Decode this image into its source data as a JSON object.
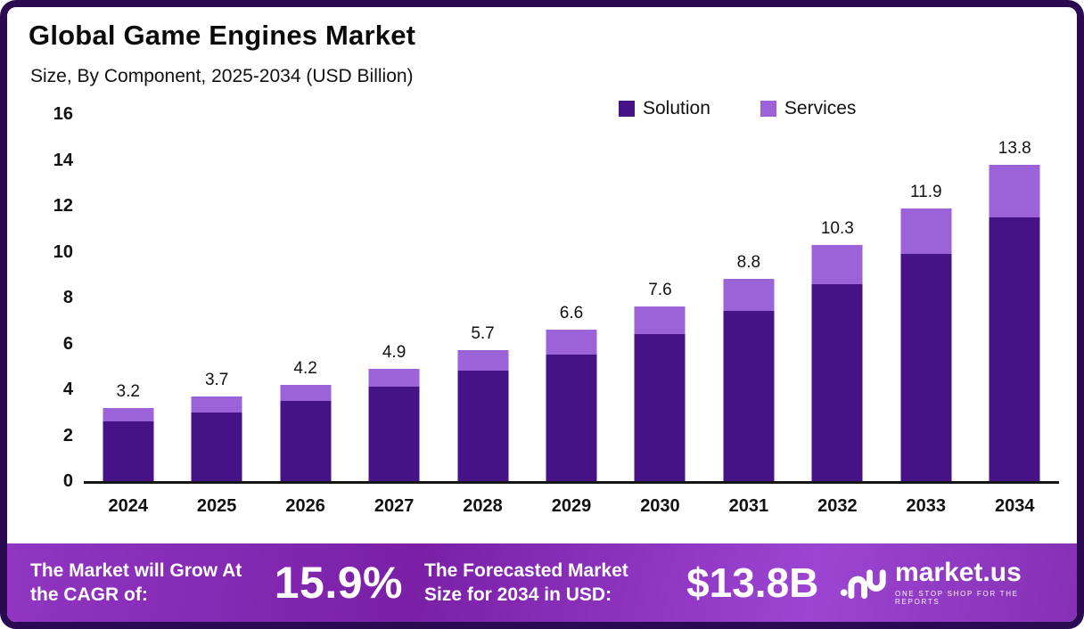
{
  "header": {
    "title": "Global Game Engines Market",
    "subtitle": "Size, By Component, 2025-2034 (USD Billion)"
  },
  "legend": [
    {
      "label": "Solution",
      "color": "#461387"
    },
    {
      "label": "Services",
      "color": "#9c63d8"
    }
  ],
  "chart_data": {
    "type": "bar",
    "stacked": true,
    "title": "Global Game Engines Market Size, By Component, 2025-2034 (USD Billion)",
    "categories": [
      "2024",
      "2025",
      "2026",
      "2027",
      "2028",
      "2029",
      "2030",
      "2031",
      "2032",
      "2033",
      "2034"
    ],
    "series": [
      {
        "name": "Solution",
        "color": "#461387",
        "values": [
          2.6,
          3.0,
          3.5,
          4.1,
          4.8,
          5.5,
          6.4,
          7.4,
          8.6,
          9.9,
          11.5
        ]
      },
      {
        "name": "Services",
        "color": "#9c63d8",
        "values": [
          0.6,
          0.7,
          0.7,
          0.8,
          0.9,
          1.1,
          1.2,
          1.4,
          1.7,
          2.0,
          2.3
        ]
      }
    ],
    "totals": [
      "3.2",
      "3.7",
      "4.2",
      "4.9",
      "5.7",
      "6.6",
      "7.6",
      "8.8",
      "10.3",
      "11.9",
      "13.8"
    ],
    "ylim": [
      0,
      16
    ],
    "yticks": [
      0,
      2,
      4,
      6,
      8,
      10,
      12,
      14,
      16
    ],
    "grid": false,
    "legend_position": "top-right"
  },
  "footer": {
    "cagr_label": "The Market will Grow At the CAGR of:",
    "cagr_value": "15.9%",
    "forecast_label": "The Forecasted Market Size for 2034 in USD:",
    "forecast_value": "$13.8B",
    "brand": {
      "name": "market.us",
      "tagline": "ONE STOP SHOP FOR THE REPORTS"
    }
  }
}
